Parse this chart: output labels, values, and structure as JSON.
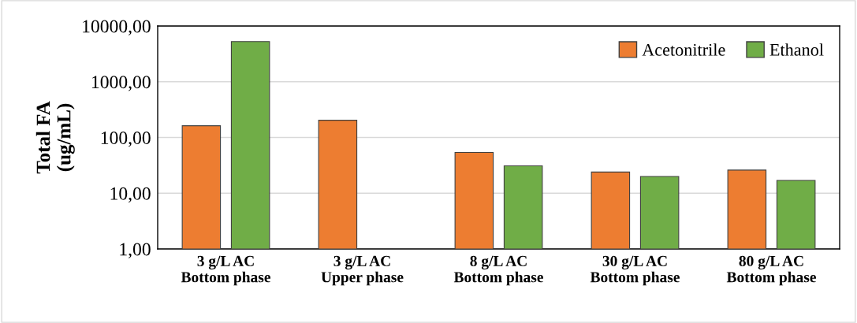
{
  "chart_data": {
    "type": "bar",
    "ylabel": "Total FA\n(ug/mL)",
    "categories": [
      "3 g/L AC\nBottom phase",
      "3 g/L AC\nUpper phase",
      "8 g/L AC\nBottom phase",
      "30 g/L AC\nBottom phase",
      "80 g/L AC\nBottom phase"
    ],
    "series": [
      {
        "name": "Acetonitrile",
        "color": "#ed7d31",
        "values": [
          162,
          204,
          54,
          24,
          26
        ]
      },
      {
        "name": "Ethanol",
        "color": "#70ad47",
        "values": [
          5250,
          null,
          31,
          20,
          17
        ]
      }
    ],
    "log": "y",
    "ylim": [
      1,
      10000
    ],
    "yticks": [
      {
        "value": 1,
        "label": "1,00"
      },
      {
        "value": 10,
        "label": "10,00"
      },
      {
        "value": 100,
        "label": "100,00"
      },
      {
        "value": 1000,
        "label": "1000,00"
      },
      {
        "value": 10000,
        "label": "10000,00"
      }
    ],
    "grid": "y",
    "legend": "top right"
  }
}
